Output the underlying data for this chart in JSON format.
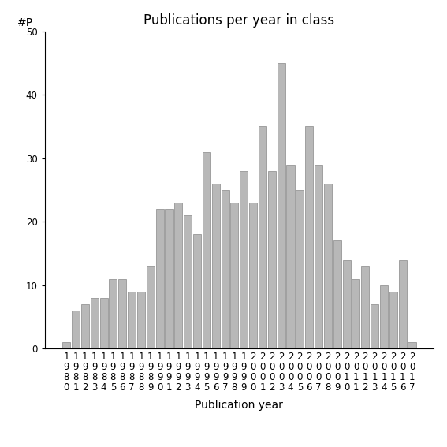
{
  "title": "Publications per year in class",
  "xlabel": "Publication year",
  "ylabel": "#P",
  "years": [
    1980,
    1981,
    1982,
    1983,
    1984,
    1985,
    1986,
    1987,
    1988,
    1989,
    1990,
    1991,
    1992,
    1993,
    1994,
    1995,
    1996,
    1997,
    1998,
    1999,
    2000,
    2001,
    2002,
    2003,
    2004,
    2005,
    2006,
    2007,
    2008,
    2009,
    2010,
    2011,
    2012,
    2013,
    2014,
    2015,
    2016,
    2017
  ],
  "values": [
    1,
    6,
    7,
    8,
    8,
    11,
    11,
    9,
    9,
    13,
    22,
    22,
    23,
    21,
    18,
    31,
    26,
    25,
    23,
    28,
    23,
    35,
    28,
    45,
    29,
    25,
    35,
    29,
    26,
    17,
    14,
    11,
    13,
    7,
    10,
    9,
    14,
    1
  ],
  "bar_color": "#b8b8b8",
  "bar_edgecolor": "#888888",
  "ylim": [
    0,
    50
  ],
  "yticks": [
    0,
    10,
    20,
    30,
    40,
    50
  ],
  "background_color": "#ffffff",
  "title_fontsize": 12,
  "axis_label_fontsize": 10,
  "tick_fontsize": 8.5
}
